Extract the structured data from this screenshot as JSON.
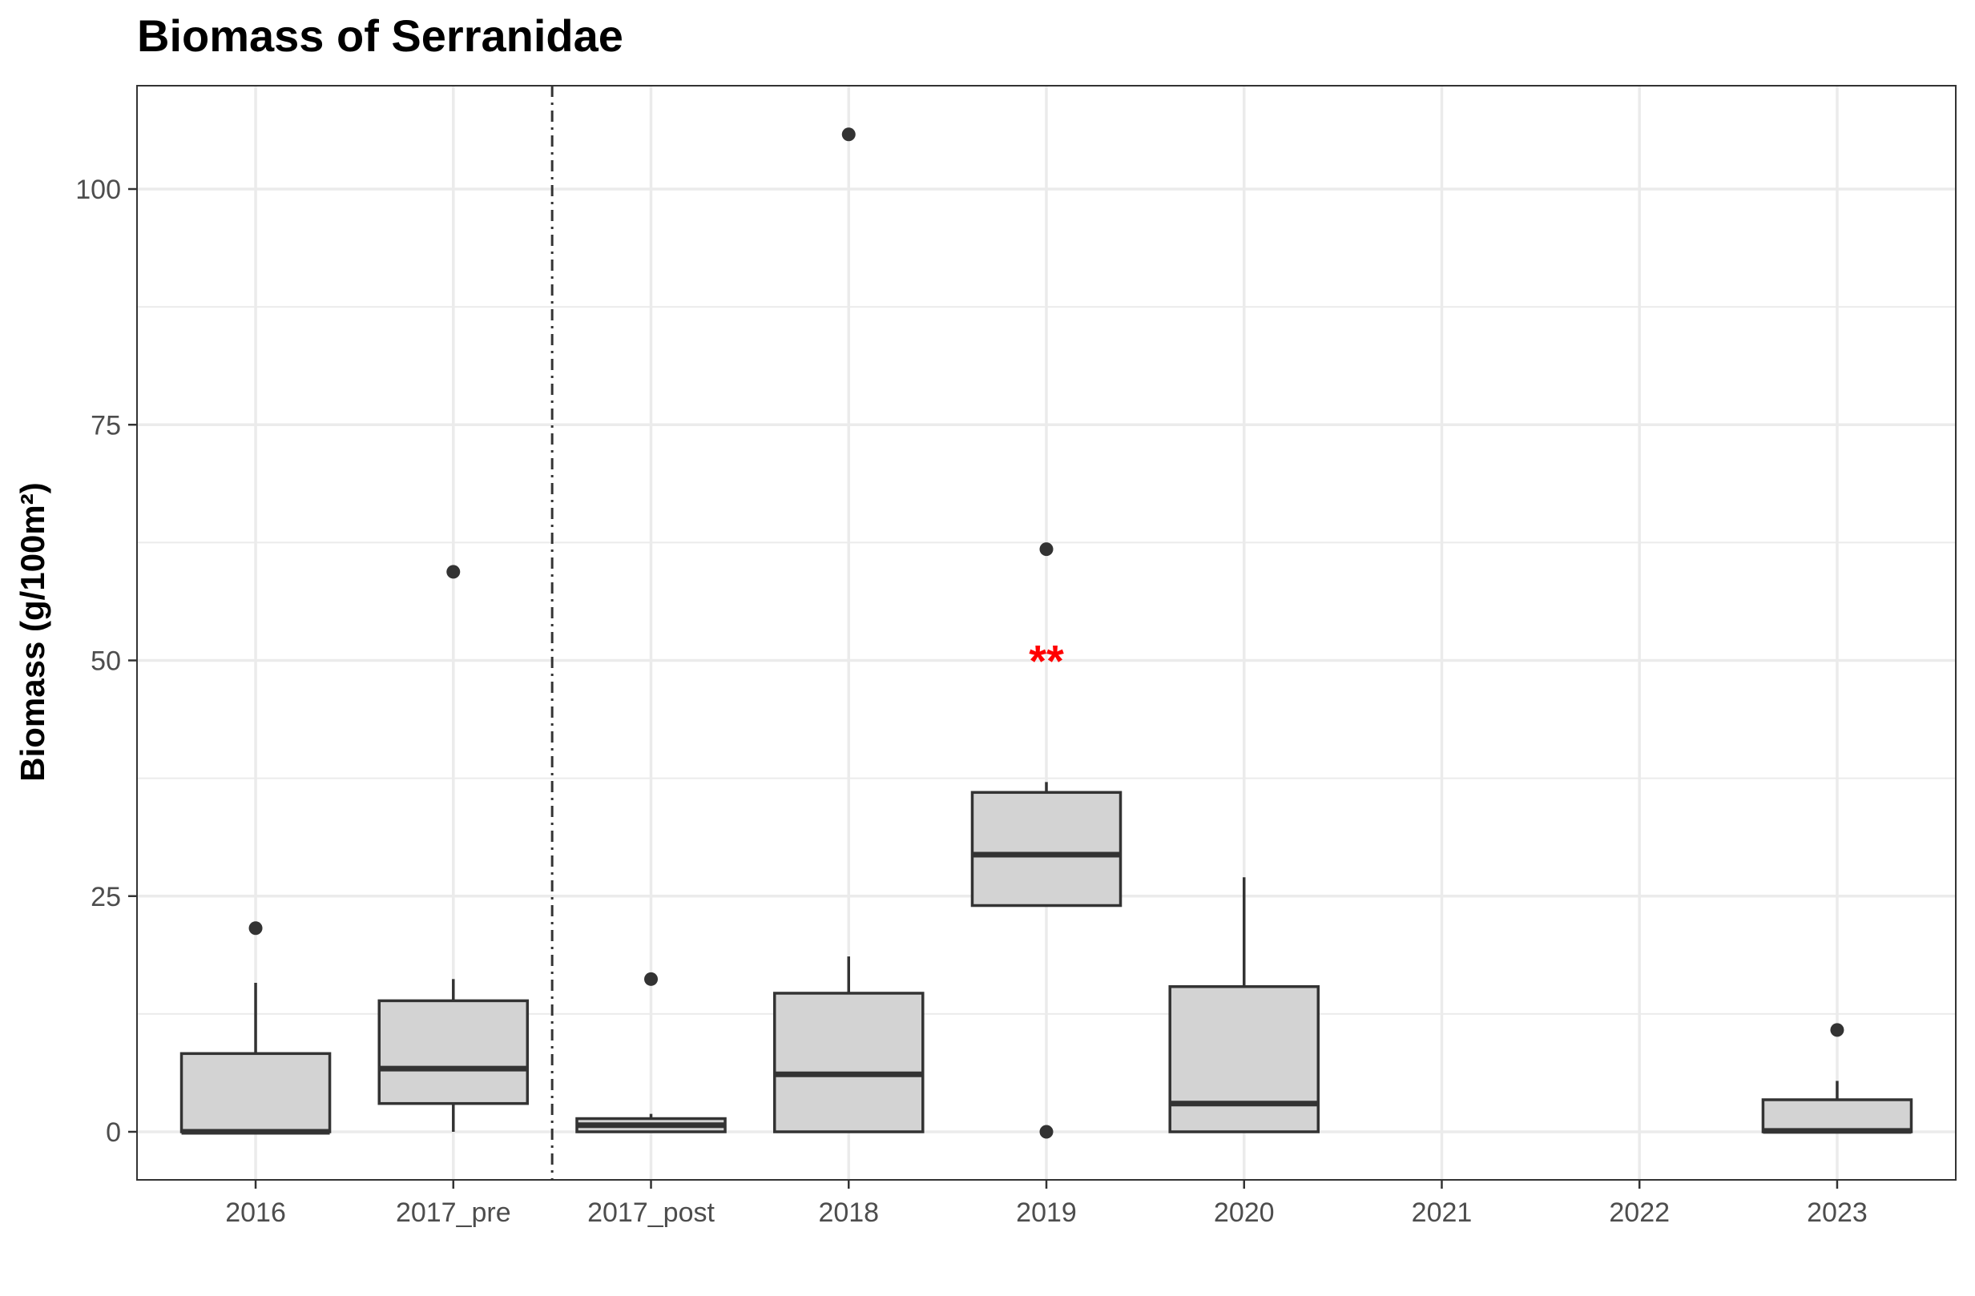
{
  "chart_data": {
    "type": "box",
    "title": "Biomass of Serranidae",
    "xlabel": "",
    "ylabel": "Biomass (g/100m²)",
    "ylim": [
      -5,
      111
    ],
    "yticks": [
      0,
      25,
      50,
      75,
      100
    ],
    "grid": true,
    "categories": [
      "2016",
      "2017_pre",
      "2017_post",
      "2018",
      "2019",
      "2020",
      "2021",
      "2022",
      "2023"
    ],
    "boxes": [
      {
        "category": "2016",
        "whisker_low": 0,
        "q1": 0,
        "median": 0,
        "q3": 8.3,
        "whisker_high": 15.8,
        "outliers": [
          21.6
        ]
      },
      {
        "category": "2017_pre",
        "whisker_low": 0,
        "q1": 3.0,
        "median": 6.7,
        "q3": 13.9,
        "whisker_high": 16.2,
        "outliers": [
          59.4
        ]
      },
      {
        "category": "2017_post",
        "whisker_low": 0,
        "q1": 0,
        "median": 0.7,
        "q3": 1.4,
        "whisker_high": 1.9,
        "outliers": [
          16.2
        ]
      },
      {
        "category": "2018",
        "whisker_low": 0,
        "q1": 0,
        "median": 6.1,
        "q3": 14.7,
        "whisker_high": 18.6,
        "outliers": [
          105.8
        ]
      },
      {
        "category": "2019",
        "whisker_low": 24.0,
        "q1": 24.0,
        "median": 29.4,
        "q3": 36.0,
        "whisker_high": 37.1,
        "outliers": [
          61.8,
          0
        ]
      },
      {
        "category": "2020",
        "whisker_low": 0,
        "q1": 0,
        "median": 3.0,
        "q3": 15.4,
        "whisker_high": 27.0,
        "outliers": []
      },
      {
        "category": "2021",
        "empty": true
      },
      {
        "category": "2022",
        "empty": true
      },
      {
        "category": "2023",
        "whisker_low": 0,
        "q1": 0,
        "median": 0.1,
        "q3": 3.4,
        "whisker_high": 5.4,
        "outliers": [
          10.8
        ]
      }
    ],
    "annotations": [
      {
        "category": "2019",
        "y": 51,
        "text": "**",
        "color": "#ff0000"
      }
    ],
    "reference_line": {
      "between": [
        "2017_pre",
        "2017_post"
      ],
      "style": "dashdot"
    },
    "colors": {
      "box_fill": "#d3d3d3",
      "box_line": "#333333",
      "grid": "#ebebeb",
      "annotation": "#ff0000"
    }
  }
}
